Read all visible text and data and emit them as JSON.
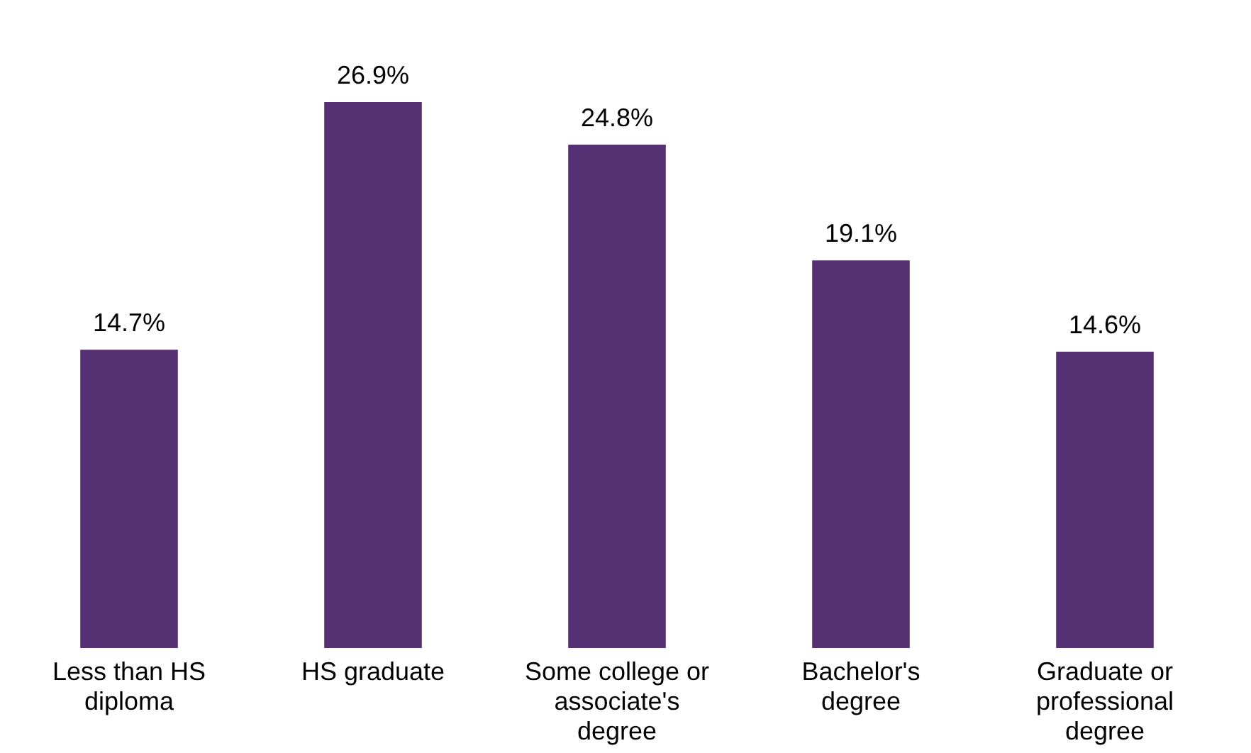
{
  "chart_data": {
    "type": "bar",
    "categories": [
      "Less than HS diploma",
      "HS graduate",
      "Some college or associate's degree",
      "Bachelor's degree",
      "Graduate or professional degree"
    ],
    "values": [
      14.7,
      26.9,
      24.8,
      19.1,
      14.6
    ],
    "value_labels": [
      "14.7%",
      "26.9%",
      "24.8%",
      "19.1%",
      "14.6%"
    ],
    "color": "#553174"
  }
}
